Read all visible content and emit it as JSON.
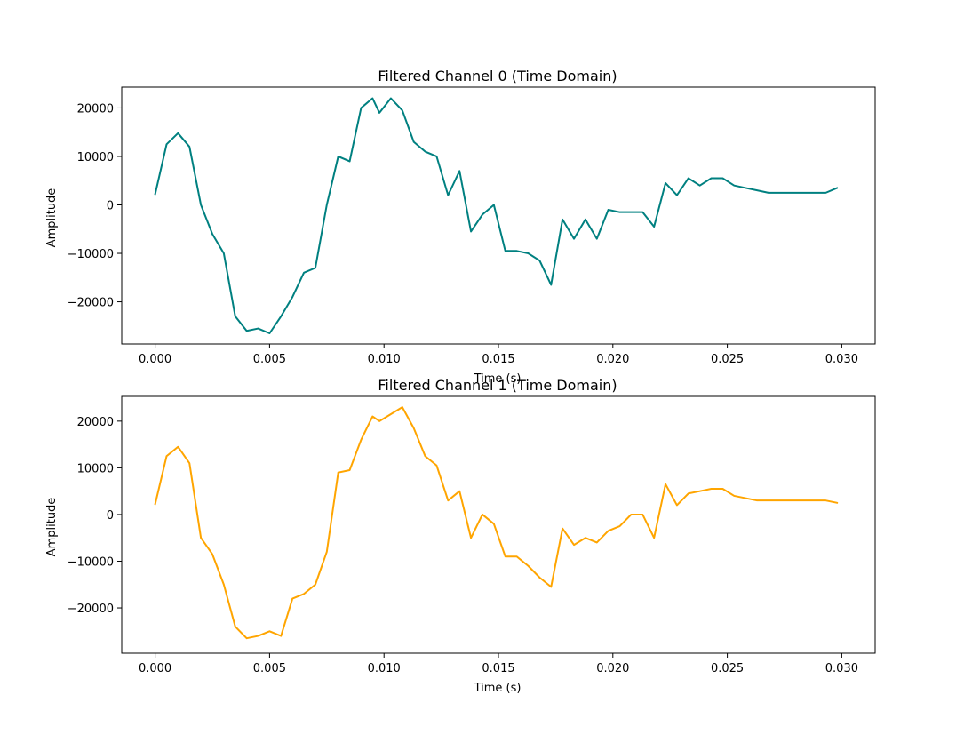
{
  "chart_data": [
    {
      "type": "line",
      "title": "Filtered Channel 0 (Time Domain)",
      "xlabel": "Time (s)",
      "ylabel": "Amplitude",
      "xlim": [
        -0.00146,
        0.03146
      ],
      "ylim": [
        -28700,
        24300
      ],
      "xticks": [
        0.0,
        0.005,
        0.01,
        0.015,
        0.02,
        0.025,
        0.03
      ],
      "xtick_labels": [
        "0.000",
        "0.005",
        "0.010",
        "0.015",
        "0.020",
        "0.025",
        "0.030"
      ],
      "yticks": [
        -20000,
        -10000,
        0,
        10000,
        20000
      ],
      "ytick_labels": [
        "−20000",
        "−10000",
        "0",
        "10000",
        "20000"
      ],
      "grid": false,
      "series": [
        {
          "color": "#008080",
          "x": [
            0.0,
            0.0005,
            0.001,
            0.0015,
            0.002,
            0.0025,
            0.003,
            0.0035,
            0.004,
            0.0045,
            0.005,
            0.0055,
            0.006,
            0.0065,
            0.007,
            0.0075,
            0.008,
            0.0085,
            0.009,
            0.0095,
            0.0098,
            0.0103,
            0.0108,
            0.0113,
            0.0118,
            0.0123,
            0.0128,
            0.0133,
            0.0138,
            0.0143,
            0.0148,
            0.0153,
            0.0158,
            0.0163,
            0.0168,
            0.0173,
            0.0178,
            0.0183,
            0.0188,
            0.0193,
            0.0198,
            0.0203,
            0.0208,
            0.0213,
            0.0218,
            0.0223,
            0.0228,
            0.0233,
            0.0238,
            0.0243,
            0.0248,
            0.0253,
            0.0258,
            0.0263,
            0.0268,
            0.0273,
            0.0278,
            0.0283,
            0.0288,
            0.0293,
            0.0298
          ],
          "y": [
            2200,
            12500,
            14800,
            12000,
            0,
            -6000,
            -10000,
            -23000,
            -26000,
            -25500,
            -26500,
            -23000,
            -19000,
            -14000,
            -13000,
            0,
            10000,
            9000,
            20000,
            22000,
            19000,
            22000,
            19500,
            13000,
            11000,
            10000,
            2000,
            7000,
            -5500,
            -2000,
            0,
            -9500,
            -9500,
            -10000,
            -11500,
            -16500,
            -3000,
            -7000,
            -3000,
            -7000,
            -1000,
            -1500,
            -1500,
            -1500,
            -4500,
            4500,
            2000,
            5500,
            4000,
            5500,
            5500,
            4000,
            3500,
            3000,
            2500,
            2500,
            2500,
            2500,
            2500,
            2500,
            3500
          ]
        }
      ]
    },
    {
      "type": "line",
      "title": "Filtered Channel 1 (Time Domain)",
      "xlabel": "Time (s)",
      "ylabel": "Amplitude",
      "xlim": [
        -0.00146,
        0.03146
      ],
      "ylim": [
        -29700,
        25300
      ],
      "xticks": [
        0.0,
        0.005,
        0.01,
        0.015,
        0.02,
        0.025,
        0.03
      ],
      "xtick_labels": [
        "0.000",
        "0.005",
        "0.010",
        "0.015",
        "0.020",
        "0.025",
        "0.030"
      ],
      "yticks": [
        -20000,
        -10000,
        0,
        10000,
        20000
      ],
      "ytick_labels": [
        "−20000",
        "−10000",
        "0",
        "10000",
        "20000"
      ],
      "grid": false,
      "series": [
        {
          "color": "#FFA500",
          "x": [
            0.0,
            0.0005,
            0.001,
            0.0015,
            0.002,
            0.0025,
            0.003,
            0.0035,
            0.004,
            0.0045,
            0.005,
            0.0055,
            0.006,
            0.0065,
            0.007,
            0.0075,
            0.008,
            0.0085,
            0.009,
            0.0095,
            0.0098,
            0.0103,
            0.0108,
            0.0113,
            0.0118,
            0.0123,
            0.0128,
            0.0133,
            0.0138,
            0.0143,
            0.0148,
            0.0153,
            0.0158,
            0.0163,
            0.0168,
            0.0173,
            0.0178,
            0.0183,
            0.0188,
            0.0193,
            0.0198,
            0.0203,
            0.0208,
            0.0213,
            0.0218,
            0.0223,
            0.0228,
            0.0233,
            0.0238,
            0.0243,
            0.0248,
            0.0253,
            0.0258,
            0.0263,
            0.0268,
            0.0273,
            0.0278,
            0.0283,
            0.0288,
            0.0293,
            0.0298
          ],
          "y": [
            2200,
            12500,
            14500,
            11000,
            -5000,
            -8500,
            -15000,
            -24000,
            -26500,
            -26000,
            -25000,
            -26000,
            -18000,
            -17000,
            -15000,
            -8000,
            9000,
            9500,
            16000,
            21000,
            20000,
            21500,
            23000,
            18500,
            12500,
            10500,
            3000,
            5000,
            -5000,
            0,
            -2000,
            -9000,
            -9000,
            -11000,
            -13500,
            -15500,
            -3000,
            -6500,
            -5000,
            -6000,
            -3500,
            -2500,
            0,
            0,
            -5000,
            6500,
            2000,
            4500,
            5000,
            5500,
            5500,
            4000,
            3500,
            3000,
            3000,
            3000,
            3000,
            3000,
            3000,
            3000,
            2500
          ]
        }
      ]
    }
  ]
}
